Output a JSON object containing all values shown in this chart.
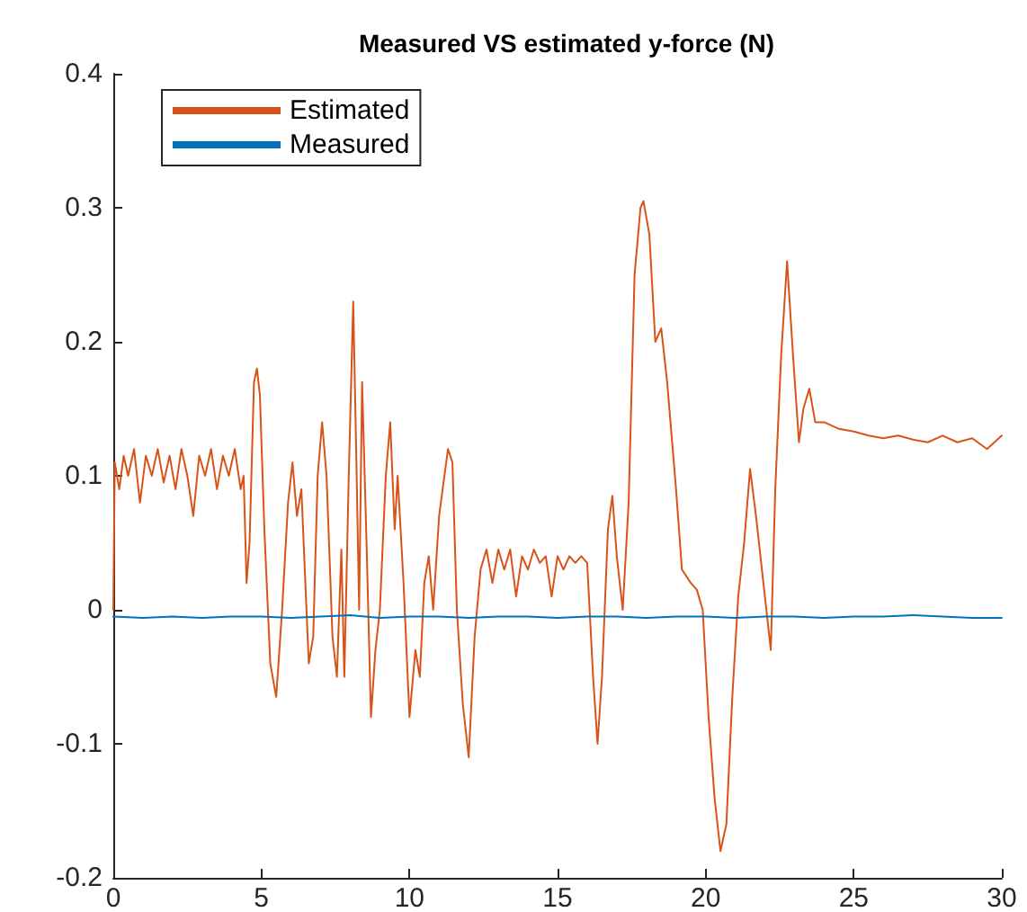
{
  "chart_data": {
    "type": "line",
    "title": "Measured VS estimated y-force (N)",
    "xlim": [
      0,
      30
    ],
    "xticks": [
      0,
      5,
      10,
      15,
      20,
      25,
      30
    ],
    "ylim": [
      -0.2,
      0.4
    ],
    "yticks": [
      -0.2,
      -0.1,
      0,
      0.1,
      0.2,
      0.3,
      0.4
    ],
    "grid": false,
    "legend": "top left",
    "marker": "none",
    "line_style": "solid",
    "series": [
      {
        "name": "Estimated",
        "color": "#d95319",
        "x": [
          0,
          0.05,
          0.2,
          0.35,
          0.5,
          0.7,
          0.9,
          1.1,
          1.3,
          1.5,
          1.7,
          1.9,
          2.1,
          2.3,
          2.5,
          2.7,
          2.9,
          3.1,
          3.3,
          3.5,
          3.7,
          3.9,
          4.1,
          4.3,
          4.4,
          4.5,
          4.6,
          4.75,
          4.85,
          4.95,
          5.1,
          5.3,
          5.5,
          5.7,
          5.9,
          6.05,
          6.2,
          6.35,
          6.6,
          6.75,
          6.9,
          7.05,
          7.2,
          7.4,
          7.55,
          7.7,
          7.8,
          7.95,
          8.1,
          8.2,
          8.3,
          8.4,
          8.55,
          8.7,
          8.85,
          9.0,
          9.2,
          9.35,
          9.5,
          9.6,
          9.8,
          10.0,
          10.2,
          10.35,
          10.5,
          10.65,
          10.8,
          11.0,
          11.3,
          11.45,
          11.6,
          11.8,
          12.0,
          12.2,
          12.4,
          12.6,
          12.8,
          13.0,
          13.2,
          13.4,
          13.6,
          13.8,
          14.0,
          14.2,
          14.4,
          14.6,
          14.8,
          15.0,
          15.2,
          15.4,
          15.6,
          15.8,
          16.0,
          16.2,
          16.35,
          16.5,
          16.7,
          16.85,
          17.0,
          17.2,
          17.4,
          17.6,
          17.8,
          17.9,
          18.1,
          18.3,
          18.5,
          18.7,
          19.0,
          19.2,
          19.5,
          19.7,
          19.9,
          20.1,
          20.3,
          20.5,
          20.7,
          20.9,
          21.1,
          21.3,
          21.5,
          21.7,
          21.9,
          22.1,
          22.2,
          22.35,
          22.55,
          22.75,
          22.95,
          23.15,
          23.3,
          23.5,
          23.7,
          24.0,
          24.5,
          25.0,
          25.5,
          26.0,
          26.5,
          27.0,
          27.5,
          28.0,
          28.5,
          29.0,
          29.5,
          30.0
        ],
        "values": [
          0.0,
          0.11,
          0.09,
          0.115,
          0.1,
          0.12,
          0.08,
          0.115,
          0.1,
          0.12,
          0.095,
          0.115,
          0.09,
          0.12,
          0.1,
          0.07,
          0.115,
          0.1,
          0.12,
          0.09,
          0.115,
          0.1,
          0.12,
          0.09,
          0.1,
          0.02,
          0.05,
          0.17,
          0.18,
          0.16,
          0.06,
          -0.04,
          -0.065,
          0.0,
          0.08,
          0.11,
          0.07,
          0.09,
          -0.04,
          -0.02,
          0.1,
          0.14,
          0.1,
          -0.02,
          -0.05,
          0.045,
          -0.05,
          0.1,
          0.23,
          0.12,
          0.0,
          0.17,
          0.05,
          -0.08,
          -0.03,
          0.0,
          0.1,
          0.14,
          0.06,
          0.1,
          0.02,
          -0.08,
          -0.03,
          -0.05,
          0.02,
          0.04,
          0.0,
          0.07,
          0.12,
          0.11,
          0.0,
          -0.07,
          -0.11,
          -0.02,
          0.03,
          0.045,
          0.02,
          0.045,
          0.03,
          0.045,
          0.01,
          0.04,
          0.03,
          0.045,
          0.035,
          0.04,
          0.01,
          0.04,
          0.03,
          0.04,
          0.035,
          0.04,
          0.035,
          -0.05,
          -0.1,
          -0.05,
          0.06,
          0.085,
          0.04,
          0.0,
          0.08,
          0.25,
          0.3,
          0.305,
          0.28,
          0.2,
          0.21,
          0.17,
          0.09,
          0.03,
          0.02,
          0.015,
          0.0,
          -0.08,
          -0.14,
          -0.18,
          -0.16,
          -0.065,
          0.01,
          0.05,
          0.105,
          0.07,
          0.03,
          -0.01,
          -0.03,
          0.09,
          0.19,
          0.26,
          0.19,
          0.125,
          0.15,
          0.165,
          0.14,
          0.14,
          0.135,
          0.133,
          0.13,
          0.128,
          0.13,
          0.127,
          0.125,
          0.13,
          0.125,
          0.128,
          0.12,
          0.13
        ]
      },
      {
        "name": "Measured",
        "color": "#0072bd",
        "x": [
          0,
          1,
          2,
          3,
          4,
          5,
          6,
          7,
          8,
          9,
          10,
          11,
          12,
          13,
          14,
          15,
          16,
          17,
          18,
          19,
          20,
          21,
          22,
          23,
          24,
          25,
          26,
          27,
          28,
          29,
          30
        ],
        "values": [
          -0.005,
          -0.006,
          -0.005,
          -0.006,
          -0.005,
          -0.005,
          -0.006,
          -0.005,
          -0.004,
          -0.006,
          -0.005,
          -0.005,
          -0.006,
          -0.005,
          -0.005,
          -0.006,
          -0.005,
          -0.005,
          -0.006,
          -0.005,
          -0.005,
          -0.006,
          -0.005,
          -0.005,
          -0.006,
          -0.005,
          -0.005,
          -0.004,
          -0.005,
          -0.006,
          -0.006
        ]
      }
    ]
  }
}
